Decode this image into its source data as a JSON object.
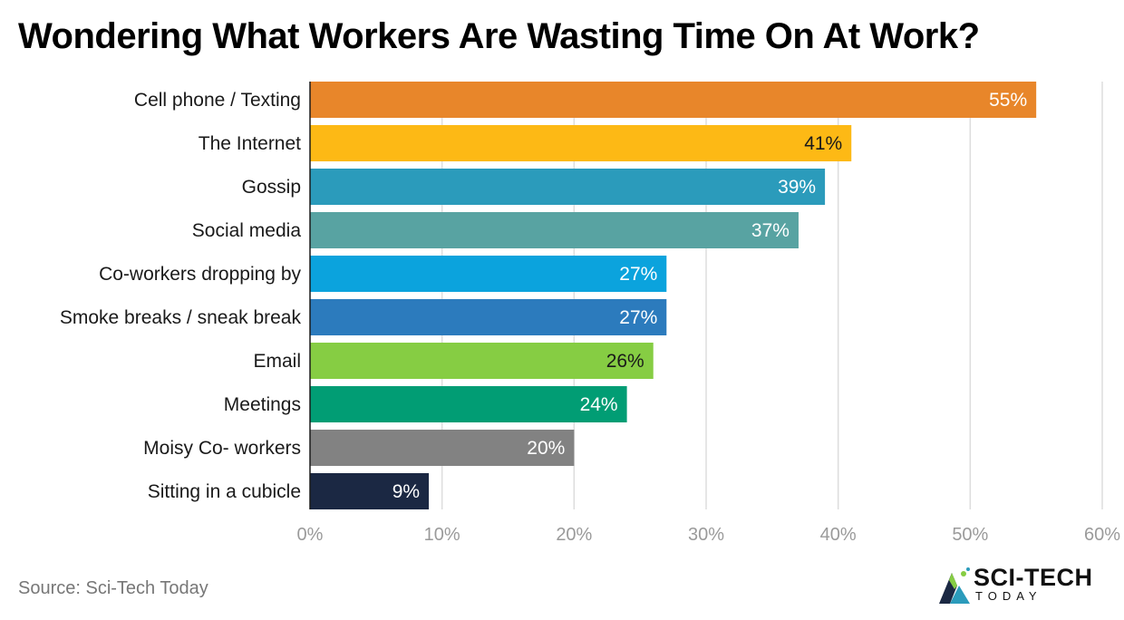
{
  "title": "Wondering What Workers Are Wasting Time On At Work?",
  "source": "Source: Sci-Tech Today",
  "logo": {
    "word1": "SCI-TECH",
    "word2": "TODAY"
  },
  "chart_data": {
    "type": "bar",
    "orientation": "horizontal",
    "title": "Wondering What Workers Are Wasting Time On At Work?",
    "categories": [
      "Cell phone / Texting",
      "The Internet",
      "Gossip",
      "Social media",
      "Co-workers dropping by",
      "Smoke breaks / sneak break",
      "Email",
      "Meetings",
      "Moisy Co- workers",
      "Sitting in a cubicle"
    ],
    "values": [
      55,
      41,
      39,
      37,
      27,
      27,
      26,
      24,
      20,
      9
    ],
    "value_labels": [
      "55%",
      "41%",
      "39%",
      "37%",
      "27%",
      "27%",
      "26%",
      "24%",
      "20%",
      "9%"
    ],
    "colors": [
      "#e8862a",
      "#fdb915",
      "#2b9bbb",
      "#58a3a2",
      "#0ba3dd",
      "#2c7bbd",
      "#86cd43",
      "#019d74",
      "#828282",
      "#1b2843"
    ],
    "label_colors": [
      "#ffffff",
      "#1a1a1a",
      "#ffffff",
      "#ffffff",
      "#ffffff",
      "#ffffff",
      "#1a1a1a",
      "#ffffff",
      "#ffffff",
      "#ffffff"
    ],
    "xlim": [
      0,
      60
    ],
    "xticks": [
      0,
      10,
      20,
      30,
      40,
      50,
      60
    ],
    "xtick_labels": [
      "0%",
      "10%",
      "20%",
      "30%",
      "40%",
      "50%",
      "60%"
    ],
    "grid": true,
    "xlabel": "",
    "ylabel": ""
  }
}
